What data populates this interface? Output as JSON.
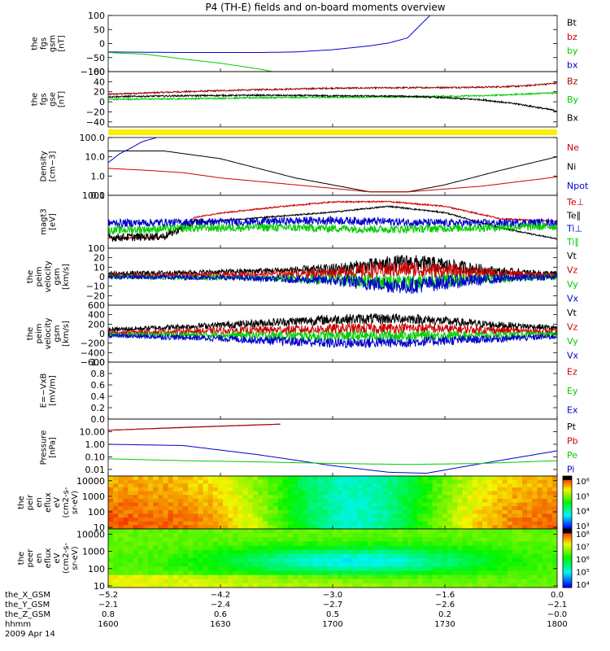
{
  "title": "P4 (TH-E) fields and on-board moments overview",
  "panels": [
    {
      "id": "fgs_gsm_nt",
      "ylabel": [
        "the",
        "fgs",
        "gsm",
        "[nT]"
      ],
      "ylim": [
        -100,
        100
      ],
      "yscale": "linear",
      "ticks": [
        100,
        50,
        0,
        -50,
        -100
      ],
      "tick_labels": [
        "100",
        "50",
        "0",
        "−50",
        "−100"
      ],
      "legend": [
        {
          "label": "Bt",
          "color": "#000000"
        },
        {
          "label": "bz",
          "color": "#cc0000"
        },
        {
          "label": "by",
          "color": "#00cc00"
        },
        {
          "label": "bx",
          "color": "#0000cc"
        }
      ]
    },
    {
      "id": "fgs_gse_nt",
      "ylabel": [
        "the",
        "fgs",
        "gse",
        "[nT]"
      ],
      "ylim": [
        -50,
        60
      ],
      "yscale": "linear",
      "ticks": [
        60,
        40,
        20,
        0,
        -20,
        -40
      ],
      "tick_labels": [
        "60",
        "40",
        "20",
        "0",
        "−20",
        "−40"
      ],
      "legend": [
        {
          "label": "Bz",
          "color": "#990000"
        },
        {
          "label": "By",
          "color": "#00cc00"
        },
        {
          "label": "Bx",
          "color": "#000000"
        }
      ]
    },
    {
      "id": "mode_bar",
      "ylabel": [],
      "legend": []
    },
    {
      "id": "density",
      "ylabel": [
        "Density",
        "[cm−3]"
      ],
      "ylim": [
        0.1,
        100
      ],
      "yscale": "log",
      "ticks": [
        100,
        10,
        1,
        0.1
      ],
      "tick_labels": [
        "100.0",
        "10.0",
        "1.0",
        "0.1"
      ],
      "legend": [
        {
          "label": "Ne",
          "color": "#cc0000"
        },
        {
          "label": "Ni",
          "color": "#000000"
        },
        {
          "label": "Npot",
          "color": "#0000cc"
        }
      ]
    },
    {
      "id": "temperature",
      "ylabel": [
        "magt3",
        "[eV]"
      ],
      "ylim": [
        100,
        1000
      ],
      "yscale": "log",
      "ticks": [
        1000,
        100
      ],
      "tick_labels": [
        "1000",
        "100"
      ],
      "legend": [
        {
          "label": "Te⊥",
          "color": "#cc0000"
        },
        {
          "label": "Te∥",
          "color": "#000000"
        },
        {
          "label": "Ti⊥",
          "color": "#0000cc"
        },
        {
          "label": "Ti∥",
          "color": "#00cc00"
        }
      ]
    },
    {
      "id": "peim_velocity_gsm_small",
      "ylabel": [
        "the",
        "peim",
        "velocity",
        "gsm",
        "[km/s]"
      ],
      "ylim": [
        -30,
        30
      ],
      "yscale": "linear",
      "ticks": [
        20,
        10,
        0,
        -10,
        -20
      ],
      "tick_labels": [
        "20",
        "10",
        "0",
        "−10",
        "−20"
      ],
      "legend": [
        {
          "label": "Vt",
          "color": "#000000"
        },
        {
          "label": "Vz",
          "color": "#cc0000"
        },
        {
          "label": "Vy",
          "color": "#00cc00"
        },
        {
          "label": "Vx",
          "color": "#0000cc"
        }
      ]
    },
    {
      "id": "peim_velocity_gsm_large",
      "ylabel": [
        "the",
        "peim",
        "velocity",
        "gsm",
        "[km/s]"
      ],
      "ylim": [
        -600,
        600
      ],
      "yscale": "linear",
      "ticks": [
        600,
        400,
        200,
        0,
        -200,
        -400,
        -600
      ],
      "tick_labels": [
        "600",
        "400",
        "200",
        "0",
        "−200",
        "−400",
        "−600"
      ],
      "legend": [
        {
          "label": "Vt",
          "color": "#000000"
        },
        {
          "label": "Vz",
          "color": "#cc0000"
        },
        {
          "label": "Vy",
          "color": "#00cc00"
        },
        {
          "label": "Vx",
          "color": "#0000cc"
        }
      ]
    },
    {
      "id": "efield",
      "ylabel": [
        "E=−VxB",
        "[mV/m]"
      ],
      "ylim": [
        0,
        1
      ],
      "yscale": "linear",
      "ticks": [
        1.0,
        0.8,
        0.6,
        0.4,
        0.2,
        0.0
      ],
      "tick_labels": [
        "1.0",
        "0.8",
        "0.6",
        "0.4",
        "0.2",
        "0.0"
      ],
      "legend": [
        {
          "label": "Ez",
          "color": "#cc0000"
        },
        {
          "label": "Ey",
          "color": "#00cc00"
        },
        {
          "label": "Ex",
          "color": "#0000cc"
        }
      ]
    },
    {
      "id": "pressure",
      "ylabel": [
        "Pressure",
        "[nPa]"
      ],
      "ylim": [
        0.003,
        100
      ],
      "yscale": "log",
      "ticks": [
        10,
        1,
        0.1,
        0.01
      ],
      "tick_labels": [
        "10.00",
        "1.00",
        "0.10",
        "0.01"
      ],
      "legend": [
        {
          "label": "Pt",
          "color": "#000000"
        },
        {
          "label": "Pb",
          "color": "#cc0000"
        },
        {
          "label": "Pe",
          "color": "#00cc00"
        },
        {
          "label": "Pi",
          "color": "#0000cc"
        }
      ]
    },
    {
      "id": "peir_spectrogram",
      "ylabel": [
        "the",
        "peir",
        "en",
        "eflux",
        "eV",
        "(cm2-s-",
        "sr-eV)"
      ],
      "ylim": [
        8,
        20000
      ],
      "yscale": "log",
      "ticks": [
        10000,
        1000,
        100,
        10
      ],
      "tick_labels": [
        "10000",
        "1000",
        "100",
        "10"
      ],
      "colorbar": {
        "min_exp": 3,
        "max_exp": 6,
        "labels": [
          "10⁶",
          "10⁵",
          "10⁴",
          "10³"
        ]
      },
      "legend": []
    },
    {
      "id": "peer_spectrogram",
      "ylabel": [
        "the",
        "peer",
        "en",
        "eflux",
        "eV",
        "(cm2-s-",
        "sr-eV)"
      ],
      "ylim": [
        8,
        20000
      ],
      "yscale": "log",
      "ticks": [
        10000,
        1000,
        100,
        10
      ],
      "tick_labels": [
        "10000",
        "1000",
        "100",
        "10"
      ],
      "colorbar": {
        "min_exp": 4,
        "max_exp": 8,
        "labels": [
          "10⁸",
          "10⁷",
          "10⁶",
          "10⁵",
          "10⁴"
        ]
      },
      "legend": []
    }
  ],
  "xaxis": {
    "row_labels": [
      "the_X_GSM",
      "the_Y_GSM",
      "the_Z_GSM",
      "hhmm",
      "2009 Apr 14"
    ],
    "columns": [
      {
        "rows": [
          "−5.2",
          "−2.1",
          "0.8",
          "1600"
        ]
      },
      {
        "rows": [
          "−4.2",
          "−2.4",
          "0.6",
          "1630"
        ]
      },
      {
        "rows": [
          "−3.0",
          "−2.7",
          "0.5",
          "1700"
        ]
      },
      {
        "rows": [
          "−1.6",
          "−2.6",
          "0.2",
          "1730"
        ]
      },
      {
        "rows": [
          "0.0",
          "−2.1",
          "−0.0",
          "1800"
        ]
      }
    ]
  },
  "chart_data": {
    "type": "line",
    "title": "P4 (TH-E) fields and on-board moments overview",
    "xlabel": "hhmm",
    "x_range_hhmm": [
      "1600",
      "1800"
    ],
    "x_ticks_minutes": [
      0,
      30,
      60,
      90,
      120
    ],
    "x_tick_labels": [
      "1600",
      "1630",
      "1700",
      "1730",
      "1800"
    ],
    "date": "2009 Apr 14",
    "panels": [
      {
        "name": "fgs gsm",
        "unit": "nT",
        "ylim": [
          -100,
          100
        ],
        "series": [
          {
            "name": "bx",
            "color": "#0000cc",
            "x": [
              0,
              20,
              40,
              50,
              60,
              70,
              75,
              80,
              86
            ],
            "y": [
              -30,
              -32,
              -32,
              -30,
              -22,
              -8,
              2,
              20,
              100
            ]
          },
          {
            "name": "by",
            "color": "#00cc00",
            "x": [
              0,
              10,
              20,
              30,
              40,
              44
            ],
            "y": [
              -32,
              -38,
              -55,
              -70,
              -90,
              -100
            ]
          }
        ]
      },
      {
        "name": "fgs gse",
        "unit": "nT",
        "ylim": [
          -50,
          60
        ],
        "series": [
          {
            "name": "Bz",
            "color": "#990000",
            "x": [
              0,
              20,
              40,
              60,
              80,
              100,
              110,
              120
            ],
            "y": [
              15,
              20,
              24,
              27,
              28,
              29,
              31,
              37
            ]
          },
          {
            "name": "By",
            "color": "#00cc00",
            "x": [
              0,
              20,
              40,
              60,
              80,
              100,
              120
            ],
            "y": [
              5,
              6,
              8,
              9,
              10,
              12,
              18
            ]
          },
          {
            "name": "Bx",
            "color": "#000000",
            "x": [
              0,
              20,
              40,
              60,
              80,
              90,
              100,
              110,
              120
            ],
            "y": [
              10,
              12,
              13,
              12,
              11,
              8,
              4,
              -5,
              -18
            ]
          }
        ]
      },
      {
        "name": "Density",
        "unit": "cm-3",
        "ylim": [
          0.1,
          100
        ],
        "series": [
          {
            "name": "Ni",
            "color": "#000000",
            "x": [
              0,
              15,
              30,
              50,
              70,
              80,
              90,
              105,
              120
            ],
            "y": [
              20,
              20,
              8,
              0.8,
              0.15,
              0.15,
              0.35,
              2,
              10
            ]
          },
          {
            "name": "Ne",
            "color": "#cc0000",
            "x": [
              0,
              10,
              20,
              30,
              50,
              70,
              80,
              100,
              120
            ],
            "y": [
              2.5,
              2,
              1.5,
              0.8,
              0.35,
              0.15,
              0.15,
              0.3,
              0.9
            ]
          },
          {
            "name": "Npot",
            "color": "#0000cc",
            "x": [
              0,
              3,
              6,
              9,
              13
            ],
            "y": [
              5,
              14,
              28,
              60,
              100
            ]
          }
        ]
      },
      {
        "name": "magt3",
        "unit": "eV",
        "ylim": [
          100,
          1000
        ],
        "series": [
          {
            "name": "Te⊥",
            "color": "#cc0000",
            "x": [
              0,
              15,
              23,
              30,
              45,
              60,
              75,
              90,
              105,
              120
            ],
            "y": [
              155,
              160,
              380,
              460,
              600,
              750,
              760,
              620,
              360,
              320
            ]
          },
          {
            "name": "Te∥",
            "color": "#000000",
            "x": [
              0,
              15,
              23,
              30,
              45,
              60,
              75,
              90,
              105,
              120
            ],
            "y": [
              160,
              170,
              310,
              330,
              400,
              480,
              620,
              470,
              240,
              150
            ]
          },
          {
            "name": "Ti⊥",
            "color": "#0000cc",
            "x": [
              0,
              20,
              40,
              60,
              75,
              90,
              105,
              120
            ],
            "y": [
              300,
              310,
              320,
              340,
              320,
              300,
              300,
              310
            ]
          },
          {
            "name": "Ti∥",
            "color": "#00cc00",
            "x": [
              0,
              20,
              40,
              60,
              75,
              90,
              105,
              120
            ],
            "y": [
              220,
              240,
              250,
              240,
              230,
              240,
              250,
              260
            ]
          }
        ]
      },
      {
        "name": "peim velocity gsm",
        "unit": "km/s",
        "ylim": [
          -30,
          30
        ],
        "series": [
          {
            "name": "Vt",
            "color": "#000000",
            "x": [
              0,
              30,
              60,
              80,
              90,
              105,
              120
            ],
            "y": [
              3,
              5,
              8,
              15,
              12,
              5,
              3
            ]
          },
          {
            "name": "Vz",
            "color": "#cc0000",
            "x": [
              0,
              30,
              60,
              80,
              90,
              105,
              120
            ],
            "y": [
              1,
              2,
              4,
              8,
              6,
              3,
              1
            ]
          },
          {
            "name": "Vy",
            "color": "#00cc00",
            "x": [
              0,
              30,
              60,
              80,
              90,
              105,
              120
            ],
            "y": [
              0,
              -1,
              -3,
              -6,
              -4,
              -2,
              0
            ]
          },
          {
            "name": "Vx",
            "color": "#0000cc",
            "x": [
              0,
              30,
              60,
              80,
              90,
              105,
              120
            ],
            "y": [
              0,
              -1,
              -4,
              -10,
              -6,
              -2,
              0
            ]
          }
        ]
      },
      {
        "name": "peim velocity gsm",
        "unit": "km/s",
        "ylim": [
          -600,
          600
        ],
        "series": [
          {
            "name": "Vt",
            "color": "#000000",
            "x": [
              0,
              30,
              60,
              80,
              100,
              120
            ],
            "y": [
              80,
              180,
              300,
              320,
              200,
              120
            ]
          },
          {
            "name": "Vz",
            "color": "#cc0000",
            "x": [
              0,
              30,
              60,
              80,
              100,
              120
            ],
            "y": [
              20,
              60,
              100,
              120,
              80,
              40
            ]
          },
          {
            "name": "Vy",
            "color": "#00cc00",
            "x": [
              0,
              30,
              60,
              80,
              100,
              120
            ],
            "y": [
              -20,
              -30,
              -50,
              -40,
              -30,
              -20
            ]
          },
          {
            "name": "Vx",
            "color": "#0000cc",
            "x": [
              0,
              30,
              60,
              80,
              100,
              120
            ],
            "y": [
              -40,
              -100,
              -200,
              -180,
              -120,
              -60
            ]
          }
        ]
      },
      {
        "name": "Pressure",
        "unit": "nPa",
        "ylim": [
          0.003,
          100
        ],
        "series": [
          {
            "name": "Pt",
            "color": "#000000",
            "x": [
              0,
              20,
              40,
              46
            ],
            "y": [
              13,
              22,
              35,
              40
            ]
          },
          {
            "name": "Pb",
            "color": "#cc0000",
            "x": [
              0,
              20,
              40,
              46
            ],
            "y": [
              13,
              21,
              34,
              39
            ]
          },
          {
            "name": "Pi",
            "color": "#0000cc",
            "x": [
              0,
              20,
              40,
              60,
              75,
              85,
              100,
              120
            ],
            "y": [
              1,
              0.8,
              0.15,
              0.02,
              0.006,
              0.005,
              0.03,
              0.3
            ]
          },
          {
            "name": "Pe",
            "color": "#00cc00",
            "x": [
              0,
              20,
              40,
              60,
              80,
              100,
              120
            ],
            "y": [
              0.07,
              0.05,
              0.04,
              0.03,
              0.025,
              0.03,
              0.05
            ]
          }
        ]
      }
    ]
  }
}
